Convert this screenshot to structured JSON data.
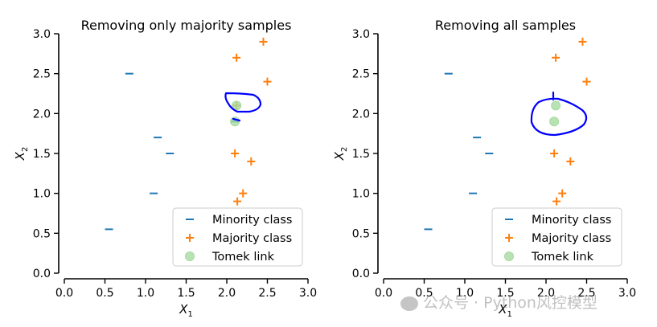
{
  "chart_data": [
    {
      "type": "scatter",
      "title": "Removing only majority samples",
      "xlabel": "X1",
      "ylabel": "X2",
      "xlim": [
        0,
        3
      ],
      "ylim": [
        0,
        3
      ],
      "xticks": [
        "0.0",
        "0.5",
        "1.0",
        "1.5",
        "2.0",
        "2.5",
        "3.0"
      ],
      "yticks": [
        "0.0",
        "0.5",
        "1.0",
        "1.5",
        "2.0",
        "2.5",
        "3.0"
      ],
      "series": [
        {
          "name": "Minority class",
          "marker": "_",
          "color": "#1f77b4",
          "points": [
            [
              0.55,
              0.55
            ],
            [
              0.8,
              2.5
            ],
            [
              1.1,
              1.0
            ],
            [
              1.15,
              1.7
            ],
            [
              1.3,
              1.5
            ],
            [
              2.1,
              1.9
            ]
          ]
        },
        {
          "name": "Majority class",
          "marker": "+",
          "color": "#ff7f0e",
          "points": [
            [
              2.45,
              2.9
            ],
            [
              2.12,
              2.7
            ],
            [
              2.5,
              2.4
            ],
            [
              2.1,
              1.5
            ],
            [
              2.3,
              1.4
            ],
            [
              2.2,
              1.0
            ],
            [
              2.13,
              0.9
            ],
            [
              2.12,
              2.1
            ]
          ]
        },
        {
          "name": "Tomek link",
          "marker": "o",
          "color": "#a6dba0",
          "points": [
            [
              2.12,
              2.1
            ],
            [
              2.1,
              1.9
            ]
          ]
        }
      ],
      "highlight_color": "#0000ff",
      "legend_position": "lower-right"
    },
    {
      "type": "scatter",
      "title": "Removing all samples",
      "xlabel": "X1",
      "ylabel": "X2",
      "xlim": [
        0,
        3
      ],
      "ylim": [
        0,
        3
      ],
      "xticks": [
        "0.0",
        "0.5",
        "1.0",
        "1.5",
        "2.0",
        "2.5",
        "3.0"
      ],
      "yticks": [
        "0.0",
        "0.5",
        "1.0",
        "1.5",
        "2.0",
        "2.5",
        "3.0"
      ],
      "series": [
        {
          "name": "Minority class",
          "marker": "_",
          "color": "#1f77b4",
          "points": [
            [
              0.55,
              0.55
            ],
            [
              0.8,
              2.5
            ],
            [
              1.1,
              1.0
            ],
            [
              1.15,
              1.7
            ],
            [
              1.3,
              1.5
            ]
          ]
        },
        {
          "name": "Majority class",
          "marker": "+",
          "color": "#ff7f0e",
          "points": [
            [
              2.45,
              2.9
            ],
            [
              2.12,
              2.7
            ],
            [
              2.5,
              2.4
            ],
            [
              2.1,
              1.5
            ],
            [
              2.3,
              1.4
            ],
            [
              2.2,
              1.0
            ],
            [
              2.13,
              0.9
            ]
          ]
        },
        {
          "name": "Tomek link",
          "marker": "o",
          "color": "#a6dba0",
          "points": [
            [
              2.12,
              2.1
            ],
            [
              2.1,
              1.9
            ]
          ]
        }
      ],
      "highlight_color": "#0000ff",
      "legend_position": "lower-right"
    }
  ],
  "watermark": {
    "text": "公众号 · Python风控模型"
  }
}
